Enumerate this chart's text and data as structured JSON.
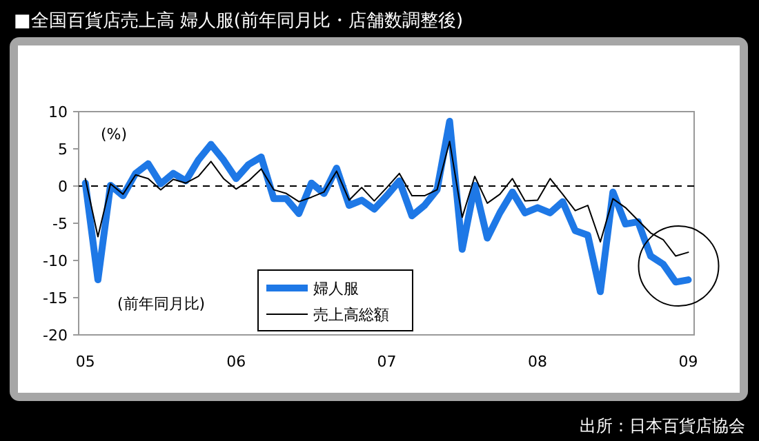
{
  "chart_data": {
    "type": "line",
    "title": "■全国百貨店売上高 婦人服(前年同月比・店舗数調整後)",
    "ylabel": "(%)",
    "annotations": [
      "(前年同月比)",
      "出所：日本百貨店協会"
    ],
    "x": [
      "2005-01",
      "2005-02",
      "2005-03",
      "2005-04",
      "2005-05",
      "2005-06",
      "2005-07",
      "2005-08",
      "2005-09",
      "2005-10",
      "2005-11",
      "2005-12",
      "2006-01",
      "2006-02",
      "2006-03",
      "2006-04",
      "2006-05",
      "2006-06",
      "2006-07",
      "2006-08",
      "2006-09",
      "2006-10",
      "2006-11",
      "2006-12",
      "2007-01",
      "2007-02",
      "2007-03",
      "2007-04",
      "2007-05",
      "2007-06",
      "2007-07",
      "2007-08",
      "2007-09",
      "2007-10",
      "2007-11",
      "2007-12",
      "2008-01",
      "2008-02",
      "2008-03",
      "2008-04",
      "2008-05",
      "2008-06",
      "2008-07",
      "2008-08",
      "2008-09",
      "2008-10",
      "2008-11",
      "2008-12",
      "2009-01"
    ],
    "series": [
      {
        "name": "婦人服",
        "color": "#1e78e6",
        "values": [
          0.4,
          -12.6,
          0.1,
          -1.3,
          1.7,
          3.0,
          0.3,
          1.7,
          0.7,
          3.5,
          5.6,
          3.5,
          1.0,
          2.9,
          3.9,
          -1.7,
          -1.7,
          -3.7,
          0.4,
          -1.0,
          2.4,
          -2.6,
          -1.9,
          -3.1,
          -1.3,
          0.7,
          -4.0,
          -2.6,
          -0.5,
          8.7,
          -8.5,
          0.1,
          -7.0,
          -3.6,
          -0.8,
          -3.6,
          -2.9,
          -3.6,
          -2.1,
          -6.0,
          -6.6,
          -14.2,
          -0.8,
          -5.1,
          -4.8,
          -9.4,
          -10.5,
          -12.9,
          -12.6
        ]
      },
      {
        "name": "売上高総額",
        "color": "#000000",
        "values": [
          1.0,
          -6.8,
          0.3,
          -1.1,
          1.5,
          1.0,
          -0.5,
          0.9,
          0.4,
          1.3,
          3.3,
          1.0,
          -0.4,
          0.7,
          2.3,
          -0.5,
          -1.0,
          -2.1,
          -1.5,
          -0.8,
          2.0,
          -1.9,
          -0.2,
          -2.0,
          -0.2,
          1.7,
          -1.3,
          -1.3,
          -0.5,
          6.0,
          -4.2,
          1.3,
          -2.3,
          -1.1,
          1.0,
          -2.0,
          -1.9,
          1.0,
          -1.1,
          -3.3,
          -2.6,
          -7.5,
          -1.7,
          -2.9,
          -4.6,
          -6.3,
          -7.2,
          -9.4,
          -8.9
        ]
      }
    ],
    "xlim": [
      "2004-12-15",
      "2009-01-15"
    ],
    "xticks": [
      {
        "value": "2005-01",
        "label": "05"
      },
      {
        "value": "2006-01",
        "label": "06"
      },
      {
        "value": "2007-01",
        "label": "07"
      },
      {
        "value": "2008-01",
        "label": "08"
      },
      {
        "value": "2009-01",
        "label": "09"
      }
    ],
    "ylim": [
      -20,
      10
    ],
    "yticks": [
      -20,
      -15,
      -10,
      -5,
      0,
      5,
      10
    ],
    "ref_lines": [
      {
        "axis": "y",
        "value": 0,
        "color": "#000000",
        "line_style": "dashed"
      }
    ],
    "legend": "bottom",
    "grid": false,
    "line_style": "solid"
  }
}
